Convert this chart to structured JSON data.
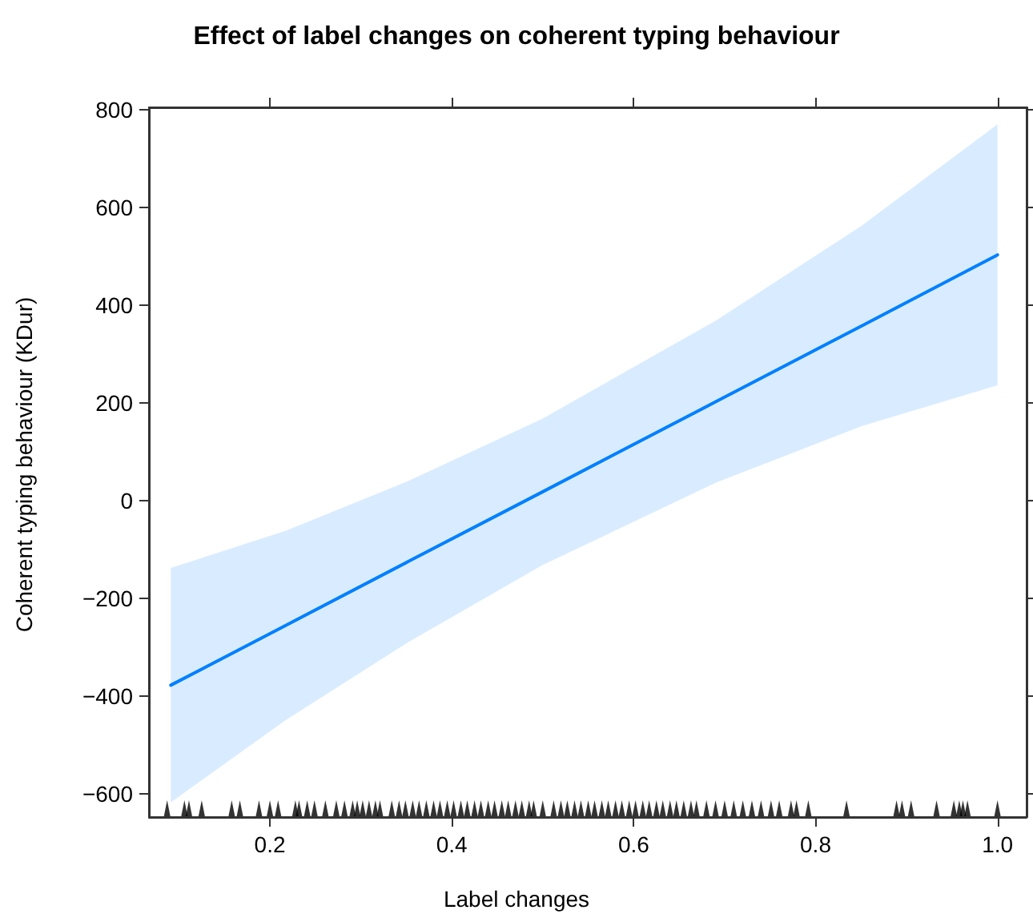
{
  "chart_data": {
    "type": "line",
    "title": "Effect of label changes on coherent typing behaviour",
    "xlabel": "Label changes",
    "ylabel": "Coherent typing behaviour (KDur)",
    "xlim": [
      0.067,
      1.032
    ],
    "ylim": [
      -648,
      805
    ],
    "xticks": [
      0.2,
      0.4,
      0.6,
      0.8,
      {
        "value": 1,
        "label": "1.0"
      }
    ],
    "yticks": [
      -600,
      -400,
      -200,
      0,
      200,
      400,
      600,
      800
    ],
    "grid": false,
    "series": [
      {
        "color": "#0080ff",
        "x": [
          0.091,
          0.217,
          0.352,
          0.5,
          0.691,
          0.85,
          1.0
        ],
        "values": [
          -378,
          -256,
          -125,
          18,
          203,
          357,
          503
        ],
        "lower": [
          -618,
          -450,
          -290,
          -132,
          37,
          152,
          236
        ],
        "upper": [
          -138,
          -62,
          40,
          168,
          369,
          562,
          770
        ]
      },
      {
        "type": "scatter",
        "marker": "triangle",
        "color": "#000000",
        "x": [
          0.087,
          0.106,
          0.111,
          0.125,
          0.158,
          0.167,
          0.188,
          0.2,
          0.209,
          0.228,
          0.232,
          0.241,
          0.249,
          0.261,
          0.273,
          0.282,
          0.291,
          0.296,
          0.302,
          0.309,
          0.316,
          0.321,
          0.334,
          0.342,
          0.349,
          0.357,
          0.364,
          0.372,
          0.38,
          0.387,
          0.395,
          0.402,
          0.41,
          0.417,
          0.425,
          0.432,
          0.44,
          0.447,
          0.455,
          0.462,
          0.47,
          0.477,
          0.485,
          0.49,
          0.5,
          0.512,
          0.52,
          0.527,
          0.535,
          0.542,
          0.55,
          0.557,
          0.565,
          0.572,
          0.58,
          0.587,
          0.595,
          0.602,
          0.61,
          0.617,
          0.625,
          0.632,
          0.64,
          0.647,
          0.655,
          0.663,
          0.669,
          0.68,
          0.69,
          0.7,
          0.71,
          0.72,
          0.73,
          0.74,
          0.751,
          0.76,
          0.773,
          0.779,
          0.792,
          0.834,
          0.889,
          0.895,
          0.905,
          0.933,
          0.952,
          0.958,
          0.962,
          0.967,
          1.0
        ],
        "values": [
          -630,
          -630,
          -630,
          -630,
          -630,
          -630,
          -630,
          -630,
          -630,
          -630,
          -630,
          -630,
          -630,
          -630,
          -630,
          -630,
          -630,
          -630,
          -630,
          -630,
          -630,
          -630,
          -630,
          -630,
          -630,
          -630,
          -630,
          -630,
          -630,
          -630,
          -630,
          -630,
          -630,
          -630,
          -630,
          -630,
          -630,
          -630,
          -630,
          -630,
          -630,
          -630,
          -630,
          -630,
          -630,
          -630,
          -630,
          -630,
          -630,
          -630,
          -630,
          -630,
          -630,
          -630,
          -630,
          -630,
          -630,
          -630,
          -630,
          -630,
          -630,
          -630,
          -630,
          -630,
          -630,
          -630,
          -630,
          -630,
          -630,
          -630,
          -630,
          -630,
          -630,
          -630,
          -630,
          -630,
          -630,
          -630,
          -630,
          -630,
          -630,
          -630,
          -630,
          -630,
          -630,
          -630,
          -630,
          -630,
          -630
        ]
      }
    ]
  }
}
